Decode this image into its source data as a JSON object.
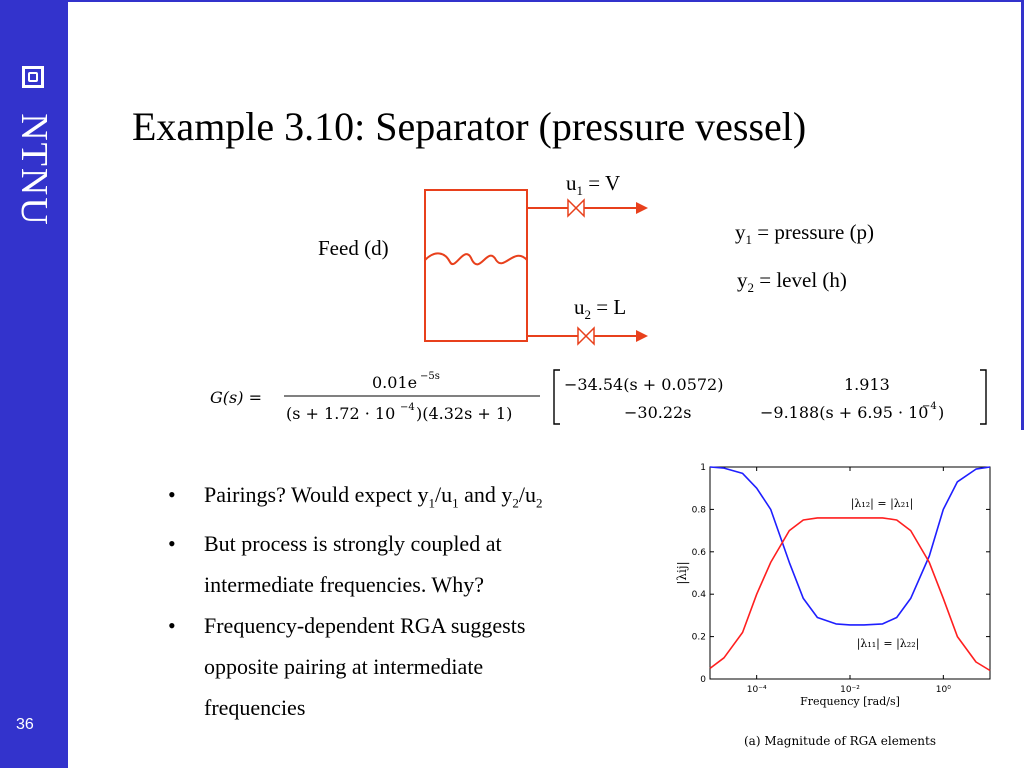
{
  "sidebar": {
    "brand": "NTNU",
    "page_number": "36"
  },
  "slide": {
    "title": "Example 3.10: Separator (pressure vessel)",
    "diagram": {
      "u1_var": "u",
      "u1_sub": "1",
      "u1_rhs": "= V",
      "u2_var": "u",
      "u2_sub": "2",
      "u2_rhs": " = L",
      "feed": "Feed (d)",
      "y1_var": "y",
      "y1_sub": "1",
      "y1_rhs": " = pressure (p)",
      "y2_var": "y",
      "y2_sub": "2",
      "y2_rhs": " = level (h)"
    },
    "equation": {
      "lhs": "G(s) =",
      "num": "0.01e",
      "num_exp": "−5s",
      "den": "(s + 1.72 · 10",
      "den_exp": "−4",
      "den_tail": ")(4.32s + 1)",
      "m11": "−34.54(s + 0.0572)",
      "m12": "1.913",
      "m21": "−30.22s",
      "m22": "−9.188(s + 6.95 · 10",
      "m22_exp": "−4",
      "m22_tail": ")"
    },
    "bullets": {
      "b1_a": "Pairings? Would expect y",
      "b1_s1": "1",
      "b1_b": "/u",
      "b1_s2": "1",
      "b1_c": " and y",
      "b1_s3": "2",
      "b1_d": "/u",
      "b1_s4": "2",
      "b2_l1": "But process is strongly coupled at",
      "b2_l2": "intermediate frequencies. Why?",
      "b3_l1": "Frequency-dependent RGA suggests",
      "b3_l2": "opposite pairing at intermediate",
      "b3_l3": "frequencies"
    }
  },
  "colors": {
    "sidebar": "#3333cc",
    "diagram": "#e8401c",
    "series1": "#1f1fff",
    "series2": "#ff1f1f"
  },
  "chart_data": {
    "type": "line",
    "caption": "(a) Magnitude of RGA elements",
    "xlabel": "Frequency [rad/s]",
    "ylabel": "|λij|",
    "xscale": "log",
    "xlim": [
      1e-05,
      10
    ],
    "ylim": [
      0,
      1
    ],
    "xticks": [
      "10⁻⁴",
      "10⁻²",
      "10⁰"
    ],
    "xtick_values": [
      0.0001,
      0.01,
      1
    ],
    "yticks": [
      "0",
      "0.2",
      "0.4",
      "0.6",
      "0.8",
      "1"
    ],
    "ytick_values": [
      0,
      0.2,
      0.4,
      0.6,
      0.8,
      1
    ],
    "x": [
      1e-05,
      2e-05,
      5e-05,
      0.0001,
      0.0002,
      0.0005,
      0.001,
      0.002,
      0.005,
      0.01,
      0.02,
      0.05,
      0.1,
      0.2,
      0.5,
      1,
      2,
      5,
      10
    ],
    "series": [
      {
        "values": [
          1.0,
          0.995,
          0.97,
          0.9,
          0.8,
          0.55,
          0.38,
          0.29,
          0.26,
          0.255,
          0.255,
          0.26,
          0.29,
          0.38,
          0.58,
          0.8,
          0.93,
          0.99,
          1.0
        ]
      },
      {
        "values": [
          0.05,
          0.1,
          0.22,
          0.4,
          0.55,
          0.7,
          0.75,
          0.76,
          0.76,
          0.76,
          0.76,
          0.76,
          0.75,
          0.7,
          0.55,
          0.38,
          0.2,
          0.08,
          0.04
        ]
      }
    ],
    "annotations": [
      "|λ₁₂| = |λ₂₁|",
      "|λ₁₁| = |λ₂₂|"
    ]
  }
}
